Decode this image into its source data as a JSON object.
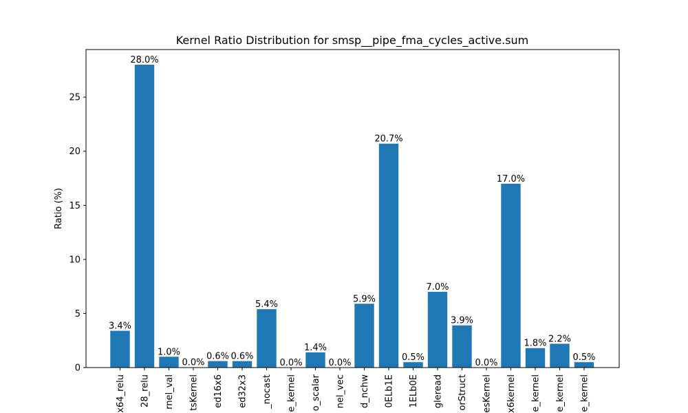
{
  "chart_data": {
    "type": "bar",
    "title": "Kernel Ratio Distribution for smsp__pipe_fma_cycles_active.sum",
    "xlabel": "",
    "ylabel": "Ratio (%)",
    "ylim": [
      0,
      29.4
    ],
    "yticks": [
      0,
      5,
      10,
      15,
      20,
      25
    ],
    "grid": false,
    "bar_color": "#1f77b4",
    "categories": [
      "x64_relu",
      "28_relu",
      "rnel_val",
      "tsKernel",
      "ed16x6",
      "ed32x3",
      "_nocast",
      "e_kernel",
      "o_scalar",
      "nel_vec",
      "d_nchw",
      "0ELb1E",
      "1ELb0E",
      "gleread",
      "orStruct",
      "esKernel",
      "x6kernel",
      "e_kernel",
      "e_kernel",
      "e_kernel"
    ],
    "values": [
      3.4,
      28.0,
      1.0,
      0.02,
      0.6,
      0.6,
      5.4,
      0.0,
      1.4,
      0.0,
      5.9,
      20.7,
      0.5,
      7.0,
      3.9,
      0.0,
      17.0,
      1.8,
      2.2,
      0.5
    ],
    "data_labels": [
      "3.4%",
      "28.0%",
      "1.0%",
      "0.0%",
      "0.6%",
      "0.6%",
      "5.4%",
      "0.0%",
      "1.4%",
      "0.0%",
      "5.9%",
      "20.7%",
      "0.5%",
      "7.0%",
      "3.9%",
      "0.0%",
      "17.0%",
      "1.8%",
      "2.2%",
      "0.5%"
    ]
  }
}
